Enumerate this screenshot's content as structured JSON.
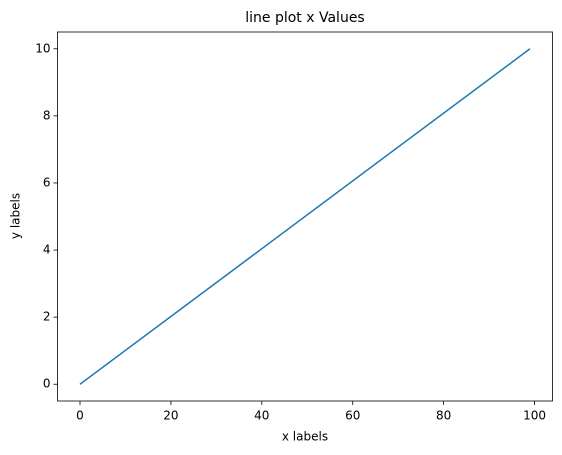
{
  "chart_data": {
    "type": "line",
    "title": "line plot x Values",
    "x_label": "x labels",
    "y_label": "y labels",
    "x": [
      0,
      99
    ],
    "series": [
      {
        "color": "#1f77b4",
        "values": [
          0,
          10
        ]
      }
    ],
    "xlim": [
      -4.95,
      103.95
    ],
    "ylim": [
      -0.5,
      10.5
    ],
    "xticks": [
      0,
      20,
      40,
      60,
      80,
      100
    ],
    "yticks": [
      0,
      2,
      4,
      6,
      8,
      10
    ]
  }
}
